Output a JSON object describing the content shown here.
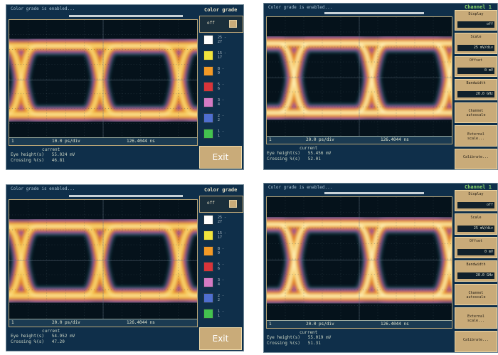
{
  "panels": [
    {
      "status": "Color grade is enabled...",
      "screen_foot": {
        "marker": "1",
        "rate": "10.0 ps/div",
        "pos": "126.4044 ns"
      },
      "readout_cap": "current",
      "readout": "Eye height(s)   55.024 mV\nCrossing %(s)   46.81"
    },
    {
      "status": "Color grade is enabled...",
      "screen_foot": {
        "marker": "1",
        "rate": "20.0 ps/div",
        "pos": "126.4044 ns"
      },
      "readout_cap": "current",
      "readout": "Eye height(s)   55.456 mV\nCrossing %(s)   52.01"
    },
    {
      "status": "Color grade is enabled...",
      "screen_foot": {
        "marker": "1",
        "rate": "20.0 ps/div",
        "pos": "126.4044 ns"
      },
      "readout_cap": "current",
      "readout": "Eye height(s)   54.952 mV\nCrossing %(s)   47.20"
    },
    {
      "status": "Color grade is enabled...",
      "screen_foot": {
        "marker": "1",
        "rate": "20.0 ps/div",
        "pos": "126.4044 ns"
      },
      "readout_cap": "current",
      "readout": "Eye height(s)   55.019 mV\nCrossing %(s)   51.31"
    }
  ],
  "grade_panel": {
    "title": "Color grade",
    "toggle": "off",
    "swatches": [
      {
        "color": "#ffffff",
        "label": "25 -\n27"
      },
      {
        "color": "#f2e43c",
        "label": "15 -\n17"
      },
      {
        "color": "#f39a26",
        "label": "8 -\n9"
      },
      {
        "color": "#d8343a",
        "label": "5 -\n6"
      },
      {
        "color": "#d47ac3",
        "label": "3 -\n4"
      },
      {
        "color": "#4f6fd0",
        "label": "2 -\n2"
      },
      {
        "color": "#43c24f",
        "label": "1 -\n1"
      }
    ],
    "exit_label": "Exit"
  },
  "channel_panel": {
    "title": "Channel 1",
    "buttons": [
      {
        "label": "Display",
        "value": "off"
      },
      {
        "label": "Scale",
        "value": "25 mV/div"
      },
      {
        "label": "Offset",
        "value": "0 mV"
      },
      {
        "label": "Bandwidth",
        "value": "20.0 GHz"
      },
      {
        "label": "Channel\nautoscale",
        "value": ""
      },
      {
        "label": "External\nscale...",
        "value": ""
      },
      {
        "label": "Calibrate...",
        "value": ""
      }
    ]
  },
  "colors": {
    "panel_bg": "#0f2f4a",
    "button": "#c9ab79",
    "channel_title": "#8cdc6c"
  }
}
